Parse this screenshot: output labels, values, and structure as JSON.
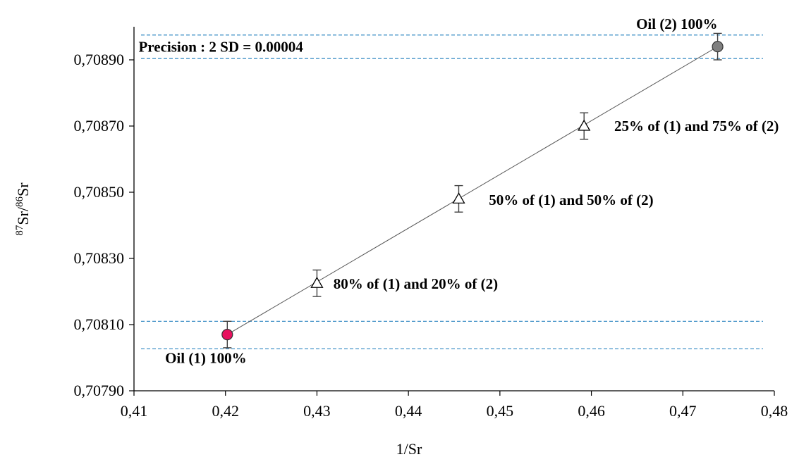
{
  "chart_data": {
    "type": "scatter",
    "xlabel": "1/Sr",
    "ylabel": {
      "sup1": "87",
      "mid": "Sr/",
      "sup2": "86",
      "end": "Sr"
    },
    "xlim": [
      0.41,
      0.48
    ],
    "ylim": [
      0.7079,
      0.709
    ],
    "x_ticks": [
      0.41,
      0.42,
      0.43,
      0.44,
      0.45,
      0.46,
      0.47,
      0.48
    ],
    "x_tick_labels": [
      "0,41",
      "0,42",
      "0,43",
      "0,44",
      "0,45",
      "0,46",
      "0,47",
      "0,48"
    ],
    "y_ticks": [
      0.7079,
      0.7081,
      0.7083,
      0.7085,
      0.7087,
      0.7089
    ],
    "y_tick_labels": [
      "0,70790",
      "0,70810",
      "0,70830",
      "0,70850",
      "0,70870",
      "0,70890"
    ],
    "grid": false,
    "colors": {
      "oil1": "#e8115f",
      "oil2": "#808080",
      "mixture": "#ffffff",
      "bands": "#2e86c1",
      "line": "#595959"
    },
    "points": [
      {
        "x": 0.4202,
        "y": 0.70807,
        "err": 4e-05,
        "marker": "circle",
        "color": "#e8115f"
      },
      {
        "x": 0.43,
        "y": 0.708225,
        "err": 4e-05,
        "marker": "triangle",
        "color": "#ffffff"
      },
      {
        "x": 0.4455,
        "y": 0.70848,
        "err": 4e-05,
        "marker": "triangle",
        "color": "#ffffff"
      },
      {
        "x": 0.4592,
        "y": 0.7087,
        "err": 4e-05,
        "marker": "triangle",
        "color": "#ffffff"
      },
      {
        "x": 0.4738,
        "y": 0.70894,
        "err": 4e-05,
        "marker": "circle",
        "color": "#808080"
      }
    ],
    "fit_line": {
      "x": [
        0.4202,
        0.4738
      ],
      "y": [
        0.70807,
        0.70894
      ]
    },
    "bands": [
      0.70811,
      0.708027,
      0.708975,
      0.708904
    ],
    "annotations": [
      {
        "text": "Oil (2) 100%",
        "x": 0.4738,
        "y": 0.708994,
        "anchor": "end"
      },
      {
        "text": "Precision : 2 SD = 0.00004",
        "x": 0.4105,
        "y": 0.708925,
        "anchor": "start"
      },
      {
        "text": "25% of (1) and 75% of (2)",
        "x": 0.4625,
        "y": 0.708685,
        "anchor": "start"
      },
      {
        "text": "50% of (1) and 50% of (2)",
        "x": 0.4488,
        "y": 0.708462,
        "anchor": "start"
      },
      {
        "text": "80% of (1) and 20% of (2)",
        "x": 0.4318,
        "y": 0.708208,
        "anchor": "start"
      },
      {
        "text": "Oil (1) 100%",
        "x": 0.4134,
        "y": 0.707984,
        "anchor": "start"
      }
    ]
  }
}
